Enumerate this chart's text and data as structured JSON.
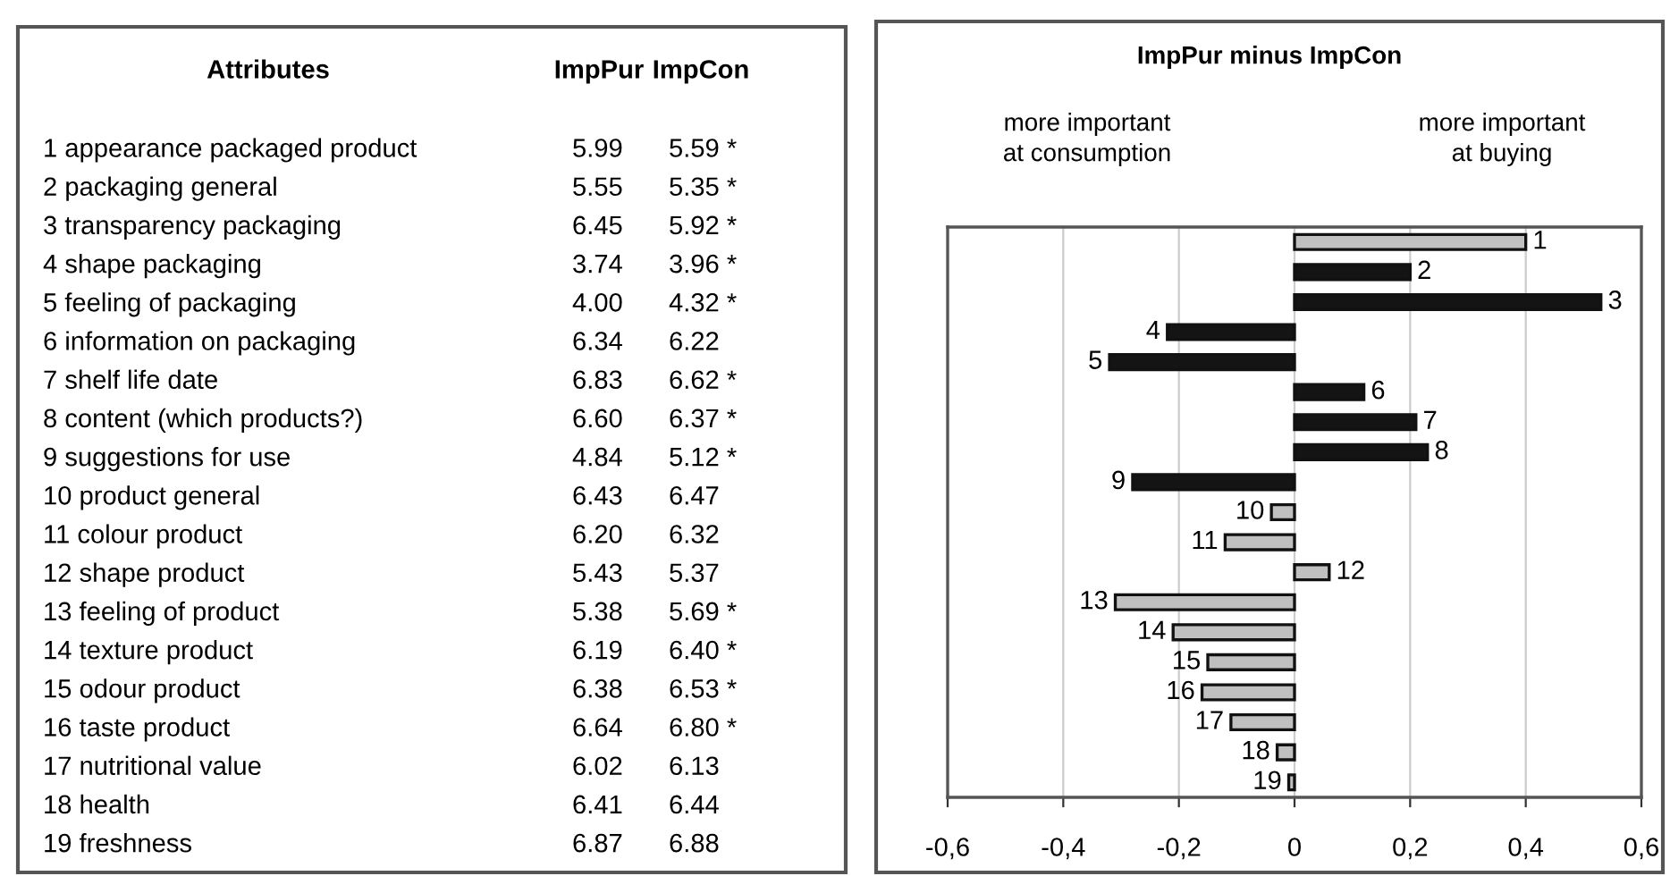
{
  "chart_data": [
    {
      "type": "other",
      "categories": [
        "Attributes",
        "ImpPur",
        "ImpCon"
      ],
      "y_categories": [
        "1 appearance packaged product",
        "2 packaging general",
        "3 transparency packaging",
        "4 shape packaging",
        "5 feeling of packaging",
        "6 information on packaging",
        "7 shelf life date",
        "8 content (which products?)",
        "9 suggestions for use",
        "10 product general",
        "11 colour product",
        "12 shape product",
        "13 feeling of product",
        "14 texture product",
        "15 odour product",
        "16 taste product",
        "17 nutritional value",
        "18 health",
        "19 freshness"
      ],
      "cell_labels": [
        [
          "5.99",
          "5.59 *"
        ],
        [
          "5.55",
          "5.35 *"
        ],
        [
          "6.45",
          "5.92 *"
        ],
        [
          "3.74",
          "3.96 *"
        ],
        [
          "4.00",
          "4.32 *"
        ],
        [
          "6.34",
          "6.22"
        ],
        [
          "6.83",
          "6.62 *"
        ],
        [
          "6.60",
          "6.37 *"
        ],
        [
          "4.84",
          "5.12 *"
        ],
        [
          "6.43",
          "6.47"
        ],
        [
          "6.20",
          "6.32"
        ],
        [
          "5.43",
          "5.37"
        ],
        [
          "5.38",
          "5.69 *"
        ],
        [
          "6.19",
          "6.40 *"
        ],
        [
          "6.38",
          "6.53 *"
        ],
        [
          "6.64",
          "6.80 *"
        ],
        [
          "6.02",
          "6.13"
        ],
        [
          "6.41",
          "6.44"
        ],
        [
          "6.87",
          "6.88"
        ]
      ]
    },
    {
      "type": "bar",
      "orientation": "horizontal",
      "title": "ImpPur minus ImpCon",
      "annotations": [
        "more important\nat consumption",
        "more important\nat buying"
      ],
      "categories": [
        "1",
        "2",
        "3",
        "4",
        "5",
        "6",
        "7",
        "8",
        "9",
        "10",
        "11",
        "12",
        "13",
        "14",
        "15",
        "16",
        "17",
        "18",
        "19"
      ],
      "values": [
        0.4,
        0.2,
        0.53,
        -0.22,
        -0.32,
        0.12,
        0.21,
        0.23,
        -0.28,
        -0.04,
        -0.12,
        0.06,
        -0.31,
        -0.21,
        -0.15,
        -0.16,
        -0.11,
        -0.03,
        -0.01
      ],
      "colors": [
        "#c0c0c0",
        "#141414",
        "#141414",
        "#141414",
        "#141414",
        "#141414",
        "#141414",
        "#141414",
        "#141414",
        "#c0c0c0",
        "#c0c0c0",
        "#c0c0c0",
        "#c0c0c0",
        "#c0c0c0",
        "#c0c0c0",
        "#c0c0c0",
        "#c0c0c0",
        "#c0c0c0",
        "#c0c0c0"
      ],
      "xlim": [
        -0.6,
        0.6
      ],
      "xticks": [
        {
          "value": -0.6,
          "label": "-0,6"
        },
        {
          "value": -0.4,
          "label": "-0,4"
        },
        {
          "value": -0.2,
          "label": "-0,2"
        },
        0,
        {
          "value": 0.2,
          "label": "0,2"
        },
        {
          "value": 0.4,
          "label": "0,4"
        },
        {
          "value": 0.6,
          "label": "0,6"
        }
      ],
      "grid": "x",
      "tick_labels": "x"
    }
  ]
}
